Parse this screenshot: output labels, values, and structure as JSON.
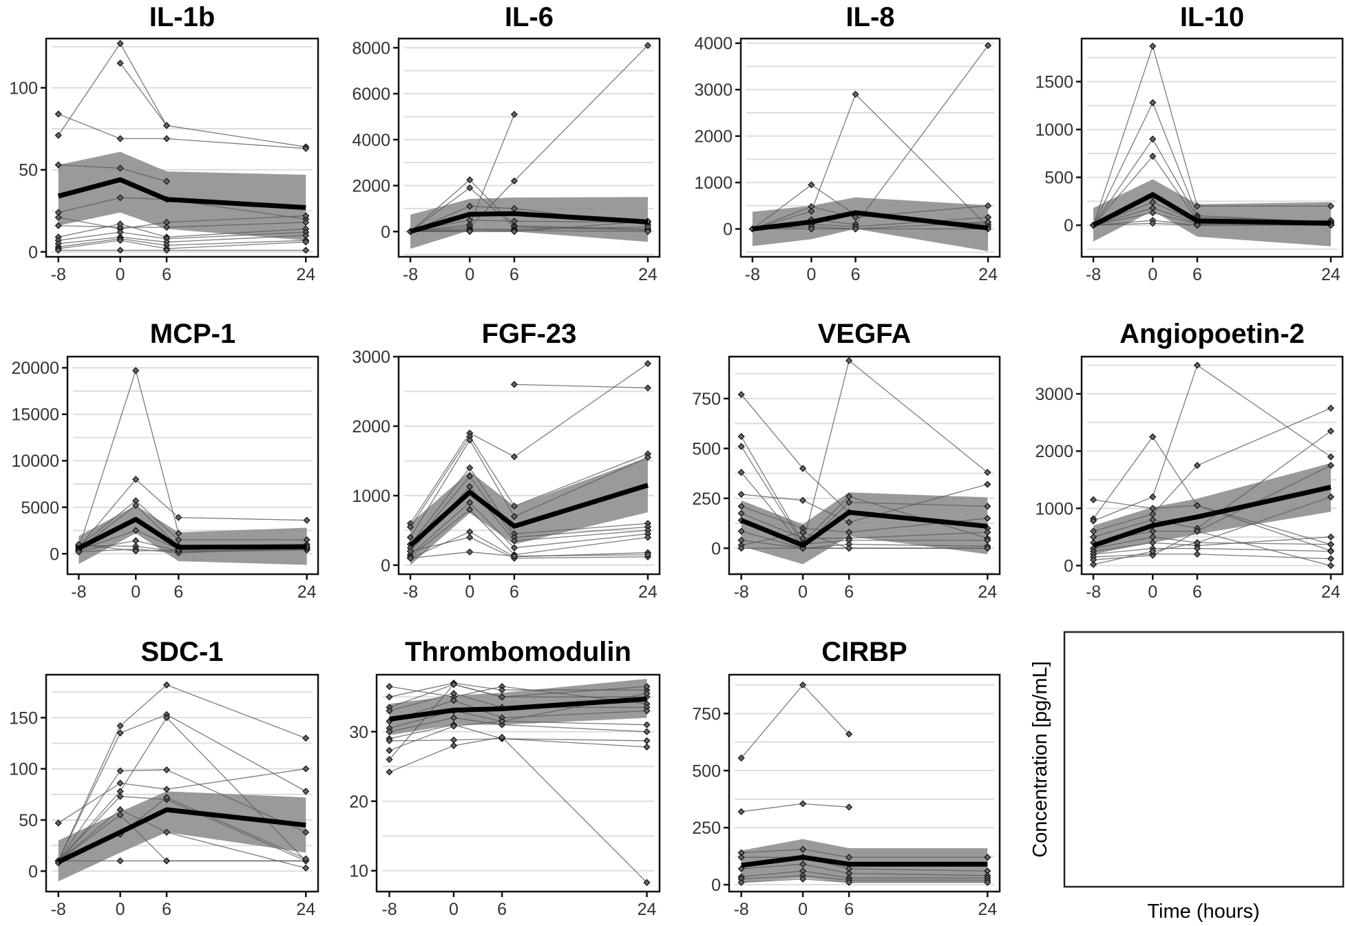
{
  "figure": {
    "ylabel": "Concentration [pg/mL]",
    "xlabel": "Time (hours)"
  },
  "chart_data": [
    {
      "type": "line",
      "title": "IL-1b",
      "x": [
        -8,
        0,
        6,
        24
      ],
      "xticks": [
        "-8",
        "0",
        "6",
        "24"
      ],
      "ylim": [
        -3,
        130
      ],
      "yticks": [
        0,
        50,
        100
      ],
      "ytick_labels": [
        "0",
        "50",
        "100"
      ],
      "grid": true,
      "mean": [
        34,
        44,
        32,
        27
      ],
      "band_lower": [
        16,
        24,
        14,
        7
      ],
      "band_upper": [
        53,
        61,
        49,
        47
      ],
      "subjects": [
        [
          71,
          127,
          77,
          64
        ],
        [
          84,
          69,
          69,
          63
        ],
        [
          null,
          115,
          77,
          null
        ],
        [
          53,
          51,
          43,
          null
        ],
        [
          24,
          33,
          32,
          20
        ],
        [
          21,
          14,
          18,
          22
        ],
        [
          16,
          15,
          15,
          18
        ],
        [
          9,
          17,
          9,
          14
        ],
        [
          7,
          12,
          8,
          12
        ],
        [
          5,
          9,
          6,
          10
        ],
        [
          3,
          8,
          4,
          7
        ],
        [
          2,
          7,
          2,
          6
        ],
        [
          1,
          1,
          1,
          1
        ]
      ]
    },
    {
      "type": "line",
      "title": "IL-6",
      "x": [
        -8,
        0,
        6,
        24
      ],
      "xticks": [
        "-8",
        "0",
        "6",
        "24"
      ],
      "ylim": [
        -1100,
        8400
      ],
      "yticks": [
        0,
        2000,
        4000,
        6000,
        8000
      ],
      "ytick_labels": [
        "0",
        "2000",
        "4000",
        "6000",
        "8000"
      ],
      "grid": true,
      "mean": [
        0,
        750,
        780,
        420
      ],
      "band_lower": [
        -750,
        50,
        0,
        -450
      ],
      "band_upper": [
        730,
        1420,
        1480,
        1500
      ],
      "subjects": [
        [
          0,
          2250,
          250,
          100
        ],
        [
          0,
          1900,
          200,
          50
        ],
        [
          0,
          1100,
          1000,
          300
        ],
        [
          0,
          300,
          5100,
          null
        ],
        [
          0,
          200,
          2200,
          8100
        ],
        [
          0,
          500,
          450,
          400
        ],
        [
          0,
          100,
          100,
          200
        ],
        [
          0,
          50,
          50,
          0
        ],
        [
          0,
          0,
          0,
          450
        ]
      ]
    },
    {
      "type": "line",
      "title": "IL-8",
      "x": [
        -8,
        0,
        6,
        24
      ],
      "xticks": [
        "-8",
        "0",
        "6",
        "24"
      ],
      "ylim": [
        -600,
        4100
      ],
      "yticks": [
        0,
        1000,
        2000,
        3000,
        4000
      ],
      "ytick_labels": [
        "0",
        "1000",
        "2000",
        "3000",
        "4000"
      ],
      "grid": true,
      "mean": [
        0,
        150,
        350,
        20
      ],
      "band_lower": [
        -370,
        -220,
        0,
        -480
      ],
      "band_upper": [
        370,
        500,
        680,
        510
      ],
      "subjects": [
        [
          0,
          950,
          300,
          100
        ],
        [
          0,
          480,
          250,
          500
        ],
        [
          0,
          380,
          2900,
          50
        ],
        [
          0,
          200,
          100,
          3950
        ],
        [
          0,
          100,
          50,
          250
        ],
        [
          0,
          50,
          0,
          150
        ],
        [
          0,
          0,
          0,
          0
        ]
      ]
    },
    {
      "type": "line",
      "title": "IL-10",
      "x": [
        -8,
        0,
        6,
        24
      ],
      "xticks": [
        "-8",
        "0",
        "6",
        "24"
      ],
      "ylim": [
        -330,
        1950
      ],
      "yticks": [
        0,
        500,
        1000,
        1500
      ],
      "ytick_labels": [
        "0",
        "500",
        "1000",
        "1500"
      ],
      "grid": true,
      "mean": [
        0,
        320,
        45,
        20
      ],
      "band_lower": [
        -170,
        150,
        -120,
        -220
      ],
      "band_upper": [
        180,
        480,
        220,
        240
      ],
      "subjects": [
        [
          0,
          1870,
          200,
          200
        ],
        [
          0,
          1280,
          100,
          30
        ],
        [
          0,
          900,
          80,
          40
        ],
        [
          0,
          720,
          50,
          20
        ],
        [
          0,
          300,
          60,
          10
        ],
        [
          0,
          240,
          30,
          50
        ],
        [
          0,
          180,
          20,
          0
        ],
        [
          0,
          130,
          10,
          30
        ],
        [
          0,
          50,
          0,
          10
        ],
        [
          0,
          20,
          0,
          0
        ]
      ]
    },
    {
      "type": "line",
      "title": "MCP-1",
      "x": [
        -8,
        0,
        6,
        24
      ],
      "xticks": [
        "-8",
        "0",
        "6",
        "24"
      ],
      "ylim": [
        -2200,
        21200
      ],
      "yticks": [
        0,
        5000,
        10000,
        15000,
        20000
      ],
      "ytick_labels": [
        "0",
        "5000",
        "10000",
        "15000",
        "20000"
      ],
      "grid": true,
      "mean": [
        600,
        3700,
        700,
        750
      ],
      "band_lower": [
        -1100,
        2200,
        -800,
        -1200
      ],
      "band_upper": [
        1900,
        5200,
        2300,
        2800
      ],
      "subjects": [
        [
          600,
          19700,
          2200,
          null
        ],
        [
          700,
          8000,
          3900,
          3600
        ],
        [
          800,
          5700,
          1500,
          1500
        ],
        [
          500,
          5200,
          800,
          1000
        ],
        [
          400,
          2500,
          500,
          700
        ],
        [
          300,
          1400,
          300,
          500
        ],
        [
          900,
          800,
          200,
          400
        ],
        [
          200,
          500,
          100,
          600
        ],
        [
          1000,
          300,
          400,
          800
        ]
      ]
    },
    {
      "type": "line",
      "title": "FGF-23",
      "x": [
        -8,
        0,
        6,
        24
      ],
      "xticks": [
        "-8",
        "0",
        "6",
        "24"
      ],
      "ylim": [
        -130,
        3000
      ],
      "yticks": [
        0,
        1000,
        2000,
        3000
      ],
      "ytick_labels": [
        "0",
        "1000",
        "2000",
        "3000"
      ],
      "grid": true,
      "mean": [
        280,
        1050,
        560,
        1150
      ],
      "band_lower": [
        0,
        750,
        300,
        760
      ],
      "band_upper": [
        600,
        1350,
        850,
        1550
      ],
      "subjects": [
        [
          600,
          1900,
          1560,
          2900
        ],
        [
          null,
          null,
          2600,
          2550
        ],
        [
          550,
          1850,
          850,
          1600
        ],
        [
          400,
          1800,
          700,
          1550
        ],
        [
          300,
          1400,
          450,
          600
        ],
        [
          250,
          1280,
          400,
          550
        ],
        [
          200,
          1130,
          350,
          500
        ],
        [
          150,
          900,
          250,
          450
        ],
        [
          120,
          800,
          150,
          400
        ],
        [
          100,
          480,
          120,
          180
        ],
        [
          200,
          400,
          100,
          120
        ],
        [
          100,
          190,
          130,
          150
        ]
      ]
    },
    {
      "type": "line",
      "title": "VEGFA",
      "x": [
        -8,
        0,
        6,
        24
      ],
      "xticks": [
        "-8",
        "0",
        "6",
        "24"
      ],
      "ylim": [
        -130,
        960
      ],
      "yticks": [
        0,
        250,
        500,
        750
      ],
      "ytick_labels": [
        "0",
        "250",
        "500",
        "750"
      ],
      "grid": true,
      "mean": [
        140,
        15,
        180,
        110
      ],
      "band_lower": [
        10,
        -80,
        60,
        -30
      ],
      "band_upper": [
        240,
        120,
        280,
        255
      ],
      "subjects": [
        [
          770,
          400,
          180,
          100
        ],
        [
          560,
          30,
          260,
          50
        ],
        [
          510,
          20,
          940,
          380
        ],
        [
          380,
          10,
          230,
          210
        ],
        [
          270,
          240,
          130,
          320
        ],
        [
          210,
          100,
          80,
          150
        ],
        [
          175,
          50,
          50,
          80
        ],
        [
          140,
          20,
          40,
          40
        ],
        [
          85,
          0,
          0,
          0
        ],
        [
          40,
          0,
          20,
          10
        ],
        [
          15,
          80,
          0,
          0
        ],
        [
          0,
          0,
          0,
          0
        ]
      ]
    },
    {
      "type": "line",
      "title": "Angiopoetin-2",
      "x": [
        -8,
        0,
        6,
        24
      ],
      "xticks": [
        "-8",
        "0",
        "6",
        "24"
      ],
      "ylim": [
        -150,
        3650
      ],
      "yticks": [
        0,
        1000,
        2000,
        3000
      ],
      "ytick_labels": [
        "0",
        "1000",
        "2000",
        "3000"
      ],
      "grid": true,
      "mean": [
        350,
        700,
        850,
        1370
      ],
      "band_lower": [
        200,
        400,
        550,
        940
      ],
      "band_upper": [
        700,
        1020,
        1170,
        1790
      ],
      "subjects": [
        [
          1150,
          1000,
          1050,
          370
        ],
        [
          820,
          2250,
          1050,
          260
        ],
        [
          780,
          1200,
          3500,
          1900
        ],
        [
          600,
          900,
          1750,
          2750
        ],
        [
          500,
          800,
          650,
          2350
        ],
        [
          400,
          600,
          600,
          1750
        ],
        [
          300,
          500,
          400,
          1200
        ],
        [
          250,
          400,
          350,
          500
        ],
        [
          200,
          300,
          300,
          250
        ],
        [
          150,
          200,
          200,
          120
        ],
        [
          100,
          180,
          600,
          0
        ],
        [
          20,
          250,
          400,
          370
        ]
      ]
    },
    {
      "type": "line",
      "title": "SDC-1",
      "x": [
        -8,
        0,
        6,
        24
      ],
      "xticks": [
        "-8",
        "0",
        "6",
        "24"
      ],
      "ylim": [
        -20,
        192
      ],
      "yticks": [
        0,
        50,
        100,
        150
      ],
      "ytick_labels": [
        "0",
        "50",
        "100",
        "150"
      ],
      "grid": true,
      "mean": [
        9,
        38,
        60,
        45
      ],
      "band_lower": [
        -10,
        18,
        38,
        18
      ],
      "band_upper": [
        30,
        58,
        78,
        72
      ],
      "subjects": [
        [
          47,
          86,
          80,
          100
        ],
        [
          10,
          142,
          182,
          130
        ],
        [
          10,
          135,
          153,
          78
        ],
        [
          10,
          98,
          99,
          38
        ],
        [
          10,
          78,
          150,
          10
        ],
        [
          10,
          73,
          70,
          10
        ],
        [
          10,
          60,
          38,
          3
        ],
        [
          10,
          55,
          10,
          10
        ],
        [
          10,
          10,
          10,
          10
        ],
        [
          8,
          36,
          72,
          12
        ]
      ]
    },
    {
      "type": "line",
      "title": "Thrombomodulin",
      "x": [
        -8,
        0,
        6,
        24
      ],
      "xticks": [
        "-8",
        "0",
        "6",
        "24"
      ],
      "ylim": [
        7,
        38.2
      ],
      "yticks": [
        10,
        20,
        30
      ],
      "ytick_labels": [
        "10",
        "20",
        "30"
      ],
      "grid": true,
      "mean": [
        31.8,
        33.1,
        33.3,
        34.7
      ],
      "band_lower": [
        29.5,
        31,
        31,
        32
      ],
      "band_upper": [
        34,
        35.2,
        35.6,
        37.6
      ],
      "subjects": [
        [
          36.5,
          35,
          36.5,
          34
        ],
        [
          35,
          37,
          36,
          36
        ],
        [
          33.5,
          36.8,
          35,
          35
        ],
        [
          33,
          35.5,
          33.5,
          33.5
        ],
        [
          31.5,
          34.5,
          32,
          33
        ],
        [
          30.5,
          33,
          31.5,
          31
        ],
        [
          30,
          32,
          31,
          30
        ],
        [
          29,
          31,
          29,
          28.7
        ],
        [
          28.7,
          28.8,
          29,
          27.8
        ],
        [
          27.3,
          30.8,
          31.5,
          35.5
        ],
        [
          26,
          36.8,
          35,
          36.5
        ],
        [
          24.2,
          28,
          29.2,
          8.3
        ]
      ]
    },
    {
      "type": "line",
      "title": "CIRBP",
      "x": [
        -8,
        0,
        6,
        24
      ],
      "xticks": [
        "-8",
        "0",
        "6",
        "24"
      ],
      "ylim": [
        -30,
        920
      ],
      "yticks": [
        0,
        250,
        500,
        750
      ],
      "ytick_labels": [
        "0",
        "250",
        "500",
        "750"
      ],
      "grid": true,
      "mean": [
        85,
        120,
        90,
        90
      ],
      "band_lower": [
        10,
        30,
        10,
        10
      ],
      "band_upper": [
        150,
        200,
        160,
        160
      ],
      "subjects": [
        [
          555,
          875,
          660,
          null
        ],
        [
          320,
          355,
          340,
          null
        ],
        [
          140,
          155,
          120,
          120
        ],
        [
          120,
          120,
          70,
          60
        ],
        [
          70,
          90,
          50,
          40
        ],
        [
          35,
          60,
          30,
          30
        ],
        [
          25,
          40,
          20,
          20
        ],
        [
          10,
          25,
          10,
          10
        ]
      ]
    }
  ]
}
